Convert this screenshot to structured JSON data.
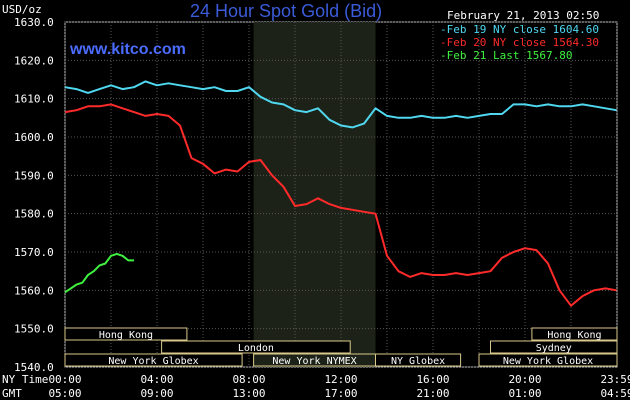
{
  "chart_data": {
    "type": "line",
    "title": "24 Hour Spot Gold (Bid)",
    "website": "www.kitco.com",
    "date_label": "February 21, 2013 02:50",
    "ylabel": "USD/oz",
    "ylim": [
      1540,
      1630
    ],
    "y_ticks": [
      "1630.0",
      "1620.0",
      "1610.0",
      "1600.0",
      "1590.0",
      "1580.0",
      "1570.0",
      "1560.0",
      "1550.0",
      "1540.0"
    ],
    "x_axis_rows": [
      {
        "label": "NY Time",
        "ticks": [
          "00:00",
          "04:00",
          "08:00",
          "12:00",
          "16:00",
          "20:00",
          "23:59"
        ]
      },
      {
        "label": "GMT",
        "ticks": [
          "05:00",
          "09:00",
          "13:00",
          "17:00",
          "21:00",
          "01:00",
          "04:59"
        ]
      }
    ],
    "sessions": [
      {
        "name": "Hong Kong",
        "start_hour": 0,
        "end_hour": 5.3,
        "row": 1
      },
      {
        "name": "Hong Kong",
        "start_hour": 20.3,
        "end_hour": 24,
        "row": 1
      },
      {
        "name": "London",
        "start_hour": 4.2,
        "end_hour": 12.4,
        "row": 2
      },
      {
        "name": "Sydney",
        "start_hour": 18.5,
        "end_hour": 24,
        "row": 2
      },
      {
        "name": "New York Globex",
        "start_hour": 0,
        "end_hour": 7.7,
        "row": 3
      },
      {
        "name": "New York NYMEX",
        "start_hour": 8.2,
        "end_hour": 13.5,
        "row": 3
      },
      {
        "name": "NY Globex",
        "start_hour": 13.5,
        "end_hour": 17.2,
        "row": 3
      },
      {
        "name": "New York Globex",
        "start_hour": 18.0,
        "end_hour": 24,
        "row": 3
      }
    ],
    "highlight_range_hours": [
      8.2,
      13.5
    ],
    "grid": true,
    "legend_position": "top-right",
    "series": [
      {
        "name": "Feb 19 NY close 1604.60",
        "color": "#4fd8f0",
        "x": [
          0,
          0.5,
          1,
          1.5,
          2,
          2.5,
          3,
          3.5,
          4,
          4.5,
          5,
          5.5,
          6,
          6.5,
          7,
          7.5,
          8,
          8.5,
          9,
          9.5,
          10,
          10.5,
          11,
          11.5,
          12,
          12.5,
          13,
          13.5,
          14,
          14.5,
          15,
          15.5,
          16,
          16.5,
          17,
          17.5,
          18,
          18.5,
          19,
          19.5,
          20,
          20.5,
          21,
          21.5,
          22,
          22.5,
          23,
          23.5,
          23.98
        ],
        "values": [
          1613,
          1612.5,
          1611.5,
          1612.5,
          1613.5,
          1612.5,
          1613,
          1614.5,
          1613.5,
          1614,
          1613.5,
          1613,
          1612.5,
          1613,
          1612,
          1612,
          1613,
          1610.5,
          1609,
          1608.5,
          1607,
          1606.5,
          1607.5,
          1604.5,
          1603,
          1602.5,
          1603.5,
          1607.5,
          1605.5,
          1605,
          1605,
          1605.5,
          1605,
          1605,
          1605.5,
          1605,
          1605.5,
          1606,
          1606,
          1608.5,
          1608.5,
          1608,
          1608.5,
          1608,
          1608,
          1608.5,
          1608,
          1607.5,
          1607
        ]
      },
      {
        "name": "Feb 20 NY close 1564.30",
        "color": "#ff2a2a",
        "x": [
          0,
          0.5,
          1,
          1.5,
          2,
          2.5,
          3,
          3.5,
          4,
          4.5,
          5,
          5.5,
          6,
          6.5,
          7,
          7.5,
          8,
          8.5,
          9,
          9.5,
          10,
          10.5,
          11,
          11.5,
          12,
          12.5,
          13,
          13.5,
          14,
          14.5,
          15,
          15.5,
          16,
          16.5,
          17,
          17.5,
          18,
          18.5,
          19,
          19.5,
          20,
          20.5,
          21,
          21.5,
          22,
          22.5,
          23,
          23.5,
          23.98
        ],
        "values": [
          1606.5,
          1607,
          1608,
          1608,
          1608.5,
          1607.5,
          1606.5,
          1605.5,
          1606,
          1605.5,
          1603,
          1594.5,
          1593,
          1590.5,
          1591.5,
          1591,
          1593.5,
          1594,
          1590,
          1587,
          1582,
          1582.5,
          1584,
          1582.5,
          1581.5,
          1581,
          1580.5,
          1580,
          1569,
          1565,
          1563.5,
          1564.5,
          1564,
          1564,
          1564.5,
          1564,
          1564.5,
          1565,
          1568.5,
          1570,
          1571,
          1570.5,
          1567,
          1560,
          1556,
          1558.5,
          1560,
          1560.5,
          1560
        ]
      },
      {
        "name": "Feb 21 Last 1567.80",
        "color": "#3ff23f",
        "x": [
          0,
          0.25,
          0.5,
          0.75,
          1,
          1.25,
          1.5,
          1.75,
          2,
          2.25,
          2.5,
          2.75,
          3
        ],
        "values": [
          1559.5,
          1560.5,
          1561.5,
          1562,
          1564,
          1565,
          1566.5,
          1567,
          1569,
          1569.5,
          1569,
          1567.8,
          1567.8
        ]
      }
    ]
  }
}
